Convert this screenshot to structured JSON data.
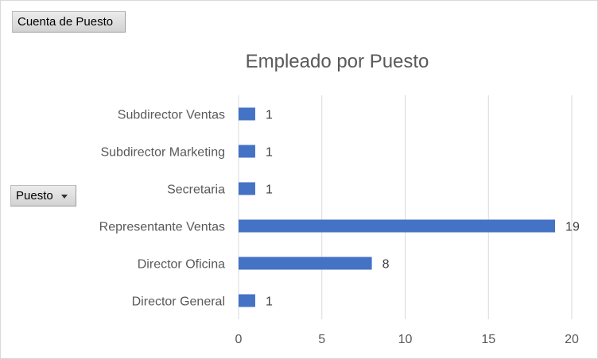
{
  "value_field_button": {
    "label": "Cuenta de Puesto"
  },
  "axis_field_button": {
    "label": "Puesto"
  },
  "chart_data": {
    "type": "bar",
    "orientation": "horizontal",
    "title": "Empleado por Puesto",
    "categories": [
      "Subdirector Ventas",
      "Subdirector Marketing",
      "Secretaria",
      "Representante Ventas",
      "Director Oficina",
      "Director General"
    ],
    "values": [
      1,
      1,
      1,
      19,
      8,
      1
    ],
    "data_labels": [
      "1",
      "1",
      "1",
      "19",
      "8",
      "1"
    ],
    "xlim": [
      0,
      20
    ],
    "xticks": [
      0,
      5,
      10,
      15,
      20
    ],
    "xtick_labels": [
      "0",
      "5",
      "10",
      "15",
      "20"
    ],
    "grid": "vertical",
    "bar_color": "#4472c4",
    "gridline_color": "#d9d9d9"
  }
}
